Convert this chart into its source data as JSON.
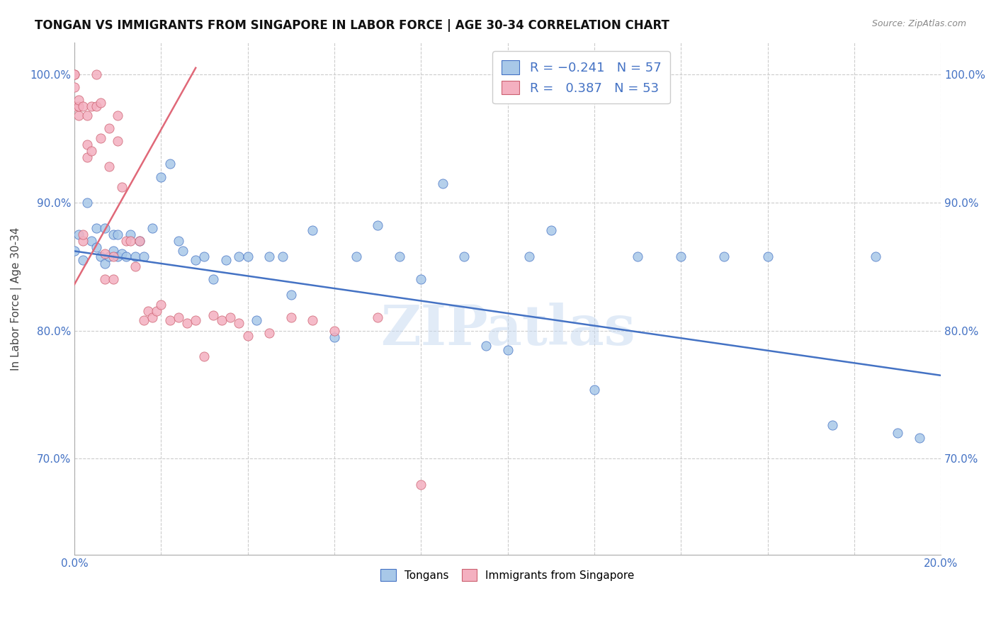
{
  "title": "TONGAN VS IMMIGRANTS FROM SINGAPORE IN LABOR FORCE | AGE 30-34 CORRELATION CHART",
  "source": "Source: ZipAtlas.com",
  "ylabel": "In Labor Force | Age 30-34",
  "xmin": 0.0,
  "xmax": 0.2,
  "ymin": 0.625,
  "ymax": 1.025,
  "x_ticks": [
    0.0,
    0.02,
    0.04,
    0.06,
    0.08,
    0.1,
    0.12,
    0.14,
    0.16,
    0.18,
    0.2
  ],
  "y_ticks": [
    0.7,
    0.8,
    0.9,
    1.0
  ],
  "color_blue": "#a8c8e8",
  "color_pink": "#f4b0c0",
  "line_blue": "#4472c4",
  "line_pink": "#e06878",
  "watermark": "ZIPatlas",
  "blue_line_x0": 0.0,
  "blue_line_y0": 0.862,
  "blue_line_x1": 0.2,
  "blue_line_y1": 0.765,
  "pink_line_x0": 0.0,
  "pink_line_y0": 0.836,
  "pink_line_x1": 0.028,
  "pink_line_y1": 1.005,
  "tongans_x": [
    0.0,
    0.001,
    0.002,
    0.003,
    0.004,
    0.005,
    0.005,
    0.006,
    0.007,
    0.007,
    0.008,
    0.009,
    0.009,
    0.01,
    0.01,
    0.011,
    0.012,
    0.013,
    0.014,
    0.015,
    0.016,
    0.018,
    0.02,
    0.022,
    0.024,
    0.025,
    0.028,
    0.03,
    0.032,
    0.035,
    0.038,
    0.04,
    0.042,
    0.045,
    0.048,
    0.05,
    0.055,
    0.06,
    0.065,
    0.07,
    0.075,
    0.08,
    0.085,
    0.09,
    0.095,
    0.1,
    0.105,
    0.11,
    0.12,
    0.13,
    0.14,
    0.15,
    0.16,
    0.175,
    0.185,
    0.19,
    0.195
  ],
  "tongans_y": [
    0.862,
    0.875,
    0.855,
    0.9,
    0.87,
    0.865,
    0.88,
    0.858,
    0.852,
    0.88,
    0.858,
    0.862,
    0.875,
    0.858,
    0.875,
    0.86,
    0.858,
    0.875,
    0.858,
    0.87,
    0.858,
    0.88,
    0.92,
    0.93,
    0.87,
    0.862,
    0.855,
    0.858,
    0.84,
    0.855,
    0.858,
    0.858,
    0.808,
    0.858,
    0.858,
    0.828,
    0.878,
    0.795,
    0.858,
    0.882,
    0.858,
    0.84,
    0.915,
    0.858,
    0.788,
    0.785,
    0.858,
    0.878,
    0.754,
    0.858,
    0.858,
    0.858,
    0.858,
    0.726,
    0.858,
    0.72,
    0.716
  ],
  "singapore_x": [
    0.0,
    0.0,
    0.0,
    0.0,
    0.001,
    0.001,
    0.001,
    0.002,
    0.002,
    0.002,
    0.003,
    0.003,
    0.003,
    0.004,
    0.004,
    0.005,
    0.005,
    0.006,
    0.006,
    0.007,
    0.007,
    0.008,
    0.008,
    0.009,
    0.009,
    0.01,
    0.01,
    0.011,
    0.012,
    0.013,
    0.014,
    0.015,
    0.016,
    0.017,
    0.018,
    0.019,
    0.02,
    0.022,
    0.024,
    0.026,
    0.028,
    0.03,
    0.032,
    0.034,
    0.036,
    0.038,
    0.04,
    0.045,
    0.05,
    0.055,
    0.06,
    0.07,
    0.08
  ],
  "singapore_y": [
    0.975,
    0.99,
    1.0,
    1.0,
    0.968,
    0.975,
    0.98,
    0.87,
    0.875,
    0.975,
    0.935,
    0.945,
    0.968,
    0.94,
    0.975,
    1.0,
    0.975,
    0.95,
    0.978,
    0.84,
    0.86,
    0.928,
    0.958,
    0.84,
    0.858,
    0.948,
    0.968,
    0.912,
    0.87,
    0.87,
    0.85,
    0.87,
    0.808,
    0.815,
    0.81,
    0.815,
    0.82,
    0.808,
    0.81,
    0.806,
    0.808,
    0.78,
    0.812,
    0.808,
    0.81,
    0.806,
    0.796,
    0.798,
    0.81,
    0.808,
    0.8,
    0.81,
    0.68
  ]
}
